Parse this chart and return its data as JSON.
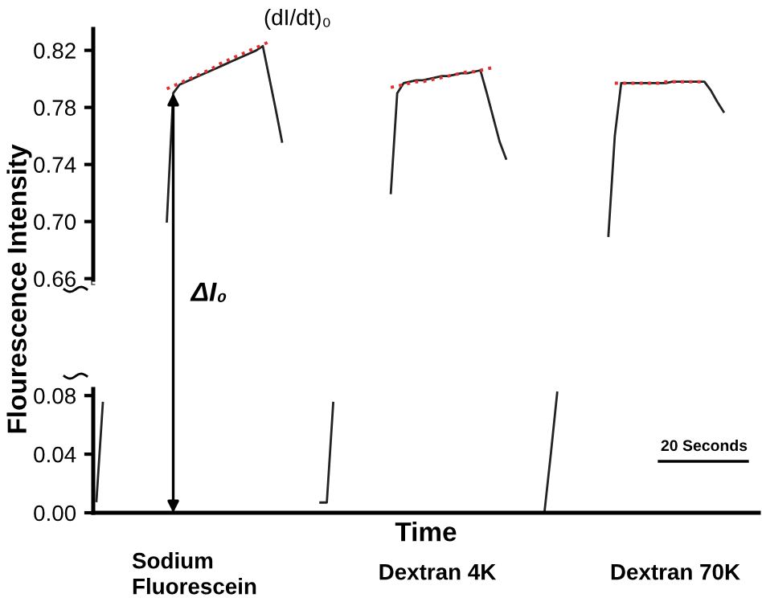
{
  "chart_data": [
    {
      "type": "line",
      "ylabel": "Flourescence Intensity",
      "tick_labels": "y",
      "grid": false,
      "legend": false,
      "ylim": [
        0.657,
        0.835
      ],
      "yticks": [
        {
          "value": 0.66,
          "label": "0.66"
        },
        {
          "value": 0.7,
          "label": "0.70"
        },
        {
          "value": 0.74,
          "label": "0.74"
        },
        {
          "value": 0.78,
          "label": "0.78"
        },
        {
          "value": 0.82,
          "label": "0.82"
        }
      ],
      "categories": [
        null,
        null,
        null,
        null,
        null,
        null,
        null,
        null,
        null,
        null,
        null,
        null,
        null,
        null,
        null,
        null,
        null,
        null,
        null,
        null,
        null,
        null,
        null,
        null,
        null,
        null,
        null,
        null,
        null,
        null,
        null,
        null,
        null,
        null,
        null,
        null,
        null,
        null,
        null,
        null,
        null,
        null,
        null,
        null,
        null,
        null,
        null,
        null,
        null,
        null,
        null,
        null,
        null,
        null,
        null,
        null,
        null,
        null,
        null,
        null,
        null,
        null,
        null,
        null,
        null,
        null,
        null,
        null,
        null,
        null,
        null,
        null,
        null,
        null,
        null,
        null,
        null,
        null,
        null,
        null,
        null,
        null,
        null,
        null,
        null,
        null,
        null,
        null,
        null,
        null,
        null,
        null,
        null,
        null,
        null,
        null,
        null,
        null,
        null,
        null,
        null,
        null,
        null,
        null
      ],
      "series": [
        {
          "color": "#222222",
          "line_style": "solid",
          "values": [
            null,
            null,
            null,
            null,
            null,
            null,
            null,
            null,
            null,
            null,
            null,
            0.7,
            0.79,
            0.796,
            0.798,
            0.8,
            0.802,
            0.804,
            0.806,
            0.808,
            0.81,
            0.812,
            0.814,
            0.816,
            0.818,
            0.82,
            0.823,
            0.801,
            0.779,
            0.756,
            null,
            null,
            null,
            null,
            null,
            null,
            null,
            null,
            null,
            null,
            null,
            null,
            null,
            null,
            null,
            null,
            null,
            null,
            null,
            null,
            null,
            null,
            null,
            null,
            null,
            null,
            null,
            null,
            null,
            null,
            null,
            null,
            null,
            null,
            null,
            null,
            null,
            null,
            null,
            null,
            null,
            null,
            null,
            null,
            null,
            null,
            null,
            null,
            null,
            null,
            null,
            null,
            null,
            null,
            null,
            null,
            null,
            null,
            null,
            null,
            null,
            null,
            null,
            null,
            null,
            null,
            null,
            null,
            null,
            null,
            null,
            null,
            null,
            null
          ]
        },
        {
          "color": "#e03030",
          "line_style": "dotted",
          "values": [
            null,
            null,
            null,
            null,
            null,
            null,
            null,
            null,
            null,
            null,
            null,
            0.793,
            0.795,
            0.797,
            0.799,
            0.801,
            0.803,
            0.805,
            0.807,
            0.81,
            0.812,
            0.814,
            0.816,
            0.818,
            0.82,
            0.822,
            0.824,
            0.826,
            null,
            null,
            null,
            null,
            null,
            null,
            null,
            null,
            null,
            null,
            null,
            null,
            null,
            null,
            null,
            null,
            null,
            null,
            null,
            null,
            null,
            null,
            null,
            null,
            null,
            null,
            null,
            null,
            null,
            null,
            null,
            null,
            null,
            null,
            null,
            null,
            null,
            null,
            null,
            null,
            null,
            null,
            null,
            null,
            null,
            null,
            null,
            null,
            null,
            null,
            null,
            null,
            null,
            null,
            null,
            null,
            null,
            null,
            null,
            null,
            null,
            null,
            null,
            null,
            null,
            null,
            null,
            null,
            null,
            null,
            null,
            null,
            null,
            null,
            null,
            null
          ]
        },
        {
          "color": "#222222",
          "line_style": "solid",
          "values": [
            null,
            null,
            null,
            null,
            null,
            null,
            null,
            null,
            null,
            null,
            null,
            null,
            null,
            null,
            null,
            null,
            null,
            null,
            null,
            null,
            null,
            null,
            null,
            null,
            null,
            null,
            null,
            null,
            null,
            null,
            null,
            null,
            null,
            null,
            null,
            null,
            null,
            null,
            null,
            null,
            null,
            null,
            null,
            null,
            null,
            null,
            0.72,
            0.79,
            0.797,
            0.798,
            0.799,
            0.799,
            0.8,
            0.801,
            0.802,
            0.802,
            0.803,
            0.804,
            0.804,
            0.805,
            0.806,
            0.79,
            0.773,
            0.756,
            0.744,
            null,
            null,
            null,
            null,
            null,
            null,
            null,
            null,
            null,
            null,
            null,
            null,
            null,
            null,
            null,
            null,
            null,
            null,
            null,
            null,
            null,
            null,
            null,
            null,
            null,
            null,
            null,
            null,
            null,
            null,
            null,
            null,
            null,
            null,
            null,
            null,
            null,
            null,
            null
          ]
        },
        {
          "color": "#e03030",
          "line_style": "dotted",
          "values": [
            null,
            null,
            null,
            null,
            null,
            null,
            null,
            null,
            null,
            null,
            null,
            null,
            null,
            null,
            null,
            null,
            null,
            null,
            null,
            null,
            null,
            null,
            null,
            null,
            null,
            null,
            null,
            null,
            null,
            null,
            null,
            null,
            null,
            null,
            null,
            null,
            null,
            null,
            null,
            null,
            null,
            null,
            null,
            null,
            null,
            null,
            0.794,
            0.795,
            0.796,
            0.797,
            0.798,
            0.798,
            0.799,
            0.8,
            0.801,
            0.802,
            0.803,
            0.804,
            0.805,
            0.805,
            0.806,
            0.807,
            0.808,
            null,
            null,
            null,
            null,
            null,
            null,
            null,
            null,
            null,
            null,
            null,
            null,
            null,
            null,
            null,
            null,
            null,
            null,
            null,
            null,
            null,
            null,
            null,
            null,
            null,
            null,
            null,
            null,
            null,
            null,
            null,
            null,
            null,
            null,
            null,
            null,
            null,
            null,
            null,
            null,
            null
          ]
        },
        {
          "color": "#222222",
          "line_style": "solid",
          "values": [
            null,
            null,
            null,
            null,
            null,
            null,
            null,
            null,
            null,
            null,
            null,
            null,
            null,
            null,
            null,
            null,
            null,
            null,
            null,
            null,
            null,
            null,
            null,
            null,
            null,
            null,
            null,
            null,
            null,
            null,
            null,
            null,
            null,
            null,
            null,
            null,
            null,
            null,
            null,
            null,
            null,
            null,
            null,
            null,
            null,
            null,
            null,
            null,
            null,
            null,
            null,
            null,
            null,
            null,
            null,
            null,
            null,
            null,
            null,
            null,
            null,
            null,
            null,
            null,
            null,
            null,
            null,
            null,
            null,
            null,
            null,
            null,
            null,
            null,
            null,
            null,
            null,
            null,
            null,
            null,
            0.69,
            0.76,
            0.797,
            0.797,
            0.797,
            0.797,
            0.797,
            0.797,
            0.797,
            0.797,
            0.798,
            0.798,
            0.798,
            0.798,
            0.798,
            0.798,
            0.792,
            0.784,
            0.777,
            null,
            null,
            null,
            null,
            null
          ]
        },
        {
          "color": "#e03030",
          "line_style": "dotted",
          "values": [
            null,
            null,
            null,
            null,
            null,
            null,
            null,
            null,
            null,
            null,
            null,
            null,
            null,
            null,
            null,
            null,
            null,
            null,
            null,
            null,
            null,
            null,
            null,
            null,
            null,
            null,
            null,
            null,
            null,
            null,
            null,
            null,
            null,
            null,
            null,
            null,
            null,
            null,
            null,
            null,
            null,
            null,
            null,
            null,
            null,
            null,
            null,
            null,
            null,
            null,
            null,
            null,
            null,
            null,
            null,
            null,
            null,
            null,
            null,
            null,
            null,
            null,
            null,
            null,
            null,
            null,
            null,
            null,
            null,
            null,
            null,
            null,
            null,
            null,
            null,
            null,
            null,
            null,
            null,
            null,
            null,
            0.797,
            0.797,
            0.797,
            0.797,
            0.797,
            0.797,
            0.797,
            0.797,
            0.798,
            0.798,
            0.798,
            0.798,
            0.798,
            0.798,
            0.798,
            null,
            null,
            null,
            null,
            null,
            null,
            null,
            null
          ]
        }
      ],
      "annotations": [
        "(dI/dt)₀",
        "ΔI₀"
      ]
    },
    {
      "type": "line",
      "xlabel": "Time",
      "tick_labels": "y",
      "grid": false,
      "legend": false,
      "ylim": [
        0,
        0.0845
      ],
      "yticks": [
        {
          "value": 0,
          "label": "0.00"
        },
        {
          "value": 0.04,
          "label": "0.04"
        },
        {
          "value": 0.08,
          "label": "0.08"
        }
      ],
      "categories": [
        null,
        null,
        null,
        null,
        null,
        null,
        null,
        null,
        null,
        null,
        null,
        null,
        null,
        null,
        null,
        null,
        null,
        null,
        null,
        null,
        null,
        null,
        null,
        null,
        null,
        null,
        null,
        null,
        null,
        null,
        null,
        null,
        null,
        null,
        null,
        null,
        null,
        null,
        null,
        null,
        null,
        null,
        null,
        null,
        null,
        null,
        null,
        null,
        null,
        null,
        null,
        null,
        null,
        null,
        null,
        null,
        null,
        null,
        null,
        null,
        null,
        null,
        null,
        null,
        null,
        null,
        null,
        null,
        null,
        null,
        null,
        null,
        null,
        null,
        null,
        null,
        null,
        null,
        null,
        null,
        null,
        null,
        null,
        null,
        null,
        null,
        null,
        null,
        null,
        null,
        null,
        null,
        null,
        null,
        null,
        null,
        null,
        null,
        null,
        null,
        null,
        null,
        null,
        null
      ],
      "series": [
        {
          "color": "#222222",
          "line_style": "solid",
          "values": [
            0.008,
            0.075,
            null,
            null,
            null,
            null,
            null,
            null,
            null,
            null,
            null,
            null,
            null,
            null,
            null,
            null,
            null,
            null,
            null,
            null,
            null,
            null,
            null,
            null,
            null,
            null,
            null,
            null,
            null,
            null,
            null,
            null,
            null,
            null,
            null,
            null,
            null,
            null,
            null,
            null,
            null,
            null,
            null,
            null,
            null,
            null,
            null,
            null,
            null,
            null,
            null,
            null,
            null,
            null,
            null,
            null,
            null,
            null,
            null,
            null,
            null,
            null,
            null,
            null,
            null,
            null,
            null,
            null,
            null,
            null,
            null,
            null,
            null,
            null,
            null,
            null,
            null,
            null,
            null,
            null,
            null,
            null,
            null,
            null,
            null,
            null,
            null,
            null,
            null,
            null,
            null,
            null,
            null,
            null,
            null,
            null,
            null,
            null,
            null,
            null,
            null,
            null,
            null,
            null
          ]
        },
        {
          "color": "#222222",
          "line_style": "solid",
          "values": [
            null,
            null,
            null,
            null,
            null,
            null,
            null,
            null,
            null,
            null,
            null,
            null,
            null,
            null,
            null,
            null,
            null,
            null,
            null,
            null,
            null,
            null,
            null,
            null,
            null,
            null,
            null,
            null,
            null,
            null,
            null,
            null,
            null,
            null,
            null,
            0.007,
            0.007,
            0.075,
            null,
            null,
            null,
            null,
            null,
            null,
            null,
            null,
            null,
            null,
            null,
            null,
            null,
            null,
            null,
            null,
            null,
            null,
            null,
            null,
            null,
            null,
            null,
            null,
            null,
            null,
            null,
            null,
            null,
            null,
            null,
            null,
            null,
            null,
            null,
            null,
            null,
            null,
            null,
            null,
            null,
            null,
            null,
            null,
            null,
            null,
            null,
            null,
            null,
            null,
            null,
            null,
            null,
            null,
            null,
            null,
            null,
            null,
            null,
            null,
            null,
            null,
            null,
            null,
            null,
            null
          ]
        },
        {
          "color": "#222222",
          "line_style": "solid",
          "values": [
            null,
            null,
            null,
            null,
            null,
            null,
            null,
            null,
            null,
            null,
            null,
            null,
            null,
            null,
            null,
            null,
            null,
            null,
            null,
            null,
            null,
            null,
            null,
            null,
            null,
            null,
            null,
            null,
            null,
            null,
            null,
            null,
            null,
            null,
            null,
            null,
            null,
            null,
            null,
            null,
            null,
            null,
            null,
            null,
            null,
            null,
            null,
            null,
            null,
            null,
            null,
            null,
            null,
            null,
            null,
            null,
            null,
            null,
            null,
            null,
            null,
            null,
            null,
            null,
            null,
            null,
            null,
            null,
            null,
            null,
            0.0,
            0.04,
            0.082,
            null,
            null,
            null,
            null,
            null,
            null,
            null,
            null,
            null,
            null,
            null,
            null,
            null,
            null,
            null,
            null,
            null,
            null,
            null,
            null,
            null,
            null,
            null,
            null,
            null,
            null,
            null,
            null,
            null,
            null,
            null
          ]
        }
      ],
      "annotations": [
        "20 Seconds",
        "Sodium\nFluorescein",
        "Dextran 4K",
        "Dextran 70K"
      ]
    }
  ]
}
